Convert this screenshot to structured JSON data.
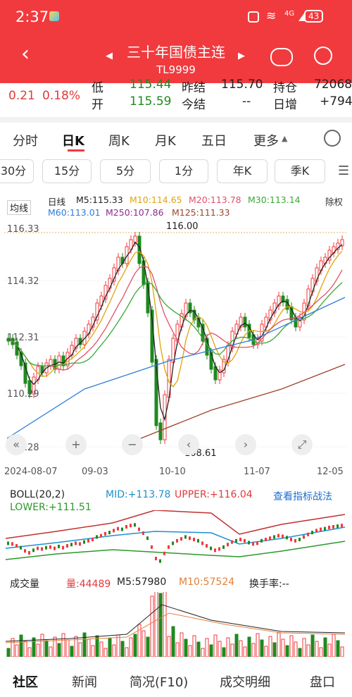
{
  "status": {
    "time": "2:37",
    "battery": "43",
    "net": "4G"
  },
  "header": {
    "title": "三十年国债主连",
    "code": "TL9999"
  },
  "quote": {
    "change": "0.21",
    "change_pct": "0.18%",
    "low_label": "低",
    "low_value": "115.44",
    "prev_label": "昨结",
    "prev_value": "115.70",
    "pos_label": "持仓",
    "pos_value": "72068",
    "open_label": "开",
    "open_value": "115.59",
    "settle_label": "今结",
    "settle_value": "--",
    "incr_label": "日增",
    "incr_value": "+794"
  },
  "tabs": [
    "分时",
    "日K",
    "周K",
    "月K",
    "五日",
    "更多"
  ],
  "active_tab": "日K",
  "periods": [
    "30分",
    "15分",
    "5分",
    "1分",
    "年K",
    "季K"
  ],
  "kline": {
    "indicator_label": "均线",
    "chart_label": "日线",
    "right_label": "除权",
    "ma": [
      {
        "label": "M5:115.33",
        "color": "#222222"
      },
      {
        "label": "M10:114.65",
        "color": "#e2a30c"
      },
      {
        "label": "M20:113.78",
        "color": "#e0506a"
      },
      {
        "label": "M30:113.14",
        "color": "#38a838"
      },
      {
        "label": "M60:113.01",
        "color": "#2e7bd9"
      },
      {
        "label": "M250:107.86",
        "color": "#8e2a8e"
      },
      {
        "label": "M125:111.33",
        "color": "#a0422c"
      }
    ],
    "y_ticks": [
      "116.33",
      "114.32",
      "112.31",
      "110.29",
      "108.28"
    ],
    "x_ticks": [
      "2024-08-07",
      "09-03",
      "10-10",
      "11-07",
      "12-05"
    ],
    "high_mark": "116.00",
    "low_mark": "108.61"
  },
  "boll": {
    "label": "BOLL(20,2)",
    "mid": "MID:+113.78",
    "upper": "UPPER:+116.04",
    "lower": "LOWER:+111.51",
    "link": "查看指标战法"
  },
  "volume": {
    "label": "成交量",
    "vol": "量:44489",
    "m5": "M5:57980",
    "m10": "M10:57524",
    "turnover": "换手率:--"
  },
  "bottom_nav": [
    "社区",
    "新闻",
    "简况(F10)",
    "成交明细",
    "盘口"
  ],
  "colors": {
    "up": "#f13a3e",
    "down": "#1e8a1e",
    "brand": "#f13a3e"
  }
}
